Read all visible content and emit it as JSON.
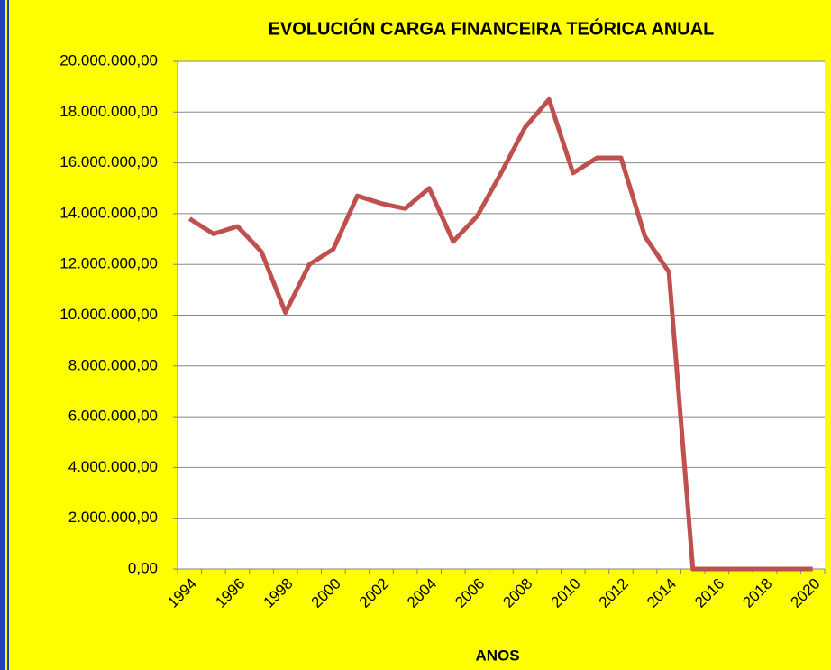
{
  "chart_data": {
    "type": "line",
    "title": "EVOLUCIÓN CARGA FINANCEIRA TEÓRICA ANUAL",
    "x_label": "ANOS",
    "categories": [
      "1994",
      null,
      "1996",
      null,
      "1998",
      null,
      "2000",
      null,
      "2002",
      null,
      "2004",
      null,
      "2006",
      null,
      "2008",
      null,
      "2010",
      null,
      "2012",
      null,
      "2014",
      null,
      "2016",
      null,
      "2018",
      null,
      "2020"
    ],
    "series": [
      {
        "color": "#c0504d",
        "values": [
          13800000,
          13200000,
          13500000,
          12500000,
          10100000,
          12000000,
          12600000,
          14700000,
          14400000,
          14200000,
          15000000,
          12900000,
          13900000,
          15600000,
          17400000,
          18500000,
          15600000,
          16200000,
          16200000,
          13100000,
          11700000,
          0,
          0,
          0,
          0,
          0,
          0
        ]
      }
    ],
    "ylim": [
      0,
      20000000
    ],
    "yticks": [
      {
        "value": 0,
        "label": "0,00"
      },
      {
        "value": 2000000,
        "label": "2.000.000,00"
      },
      {
        "value": 4000000,
        "label": "4.000.000,00"
      },
      {
        "value": 6000000,
        "label": "6.000.000,00"
      },
      {
        "value": 8000000,
        "label": "8.000.000,00"
      },
      {
        "value": 10000000,
        "label": "10.000.000,00"
      },
      {
        "value": 12000000,
        "label": "12.000.000,00"
      },
      {
        "value": 14000000,
        "label": "14.000.000,00"
      },
      {
        "value": 16000000,
        "label": "16.000.000,00"
      },
      {
        "value": 18000000,
        "label": "18.000.000,00"
      },
      {
        "value": 20000000,
        "label": "20.000.000,00"
      }
    ],
    "grid": true
  }
}
